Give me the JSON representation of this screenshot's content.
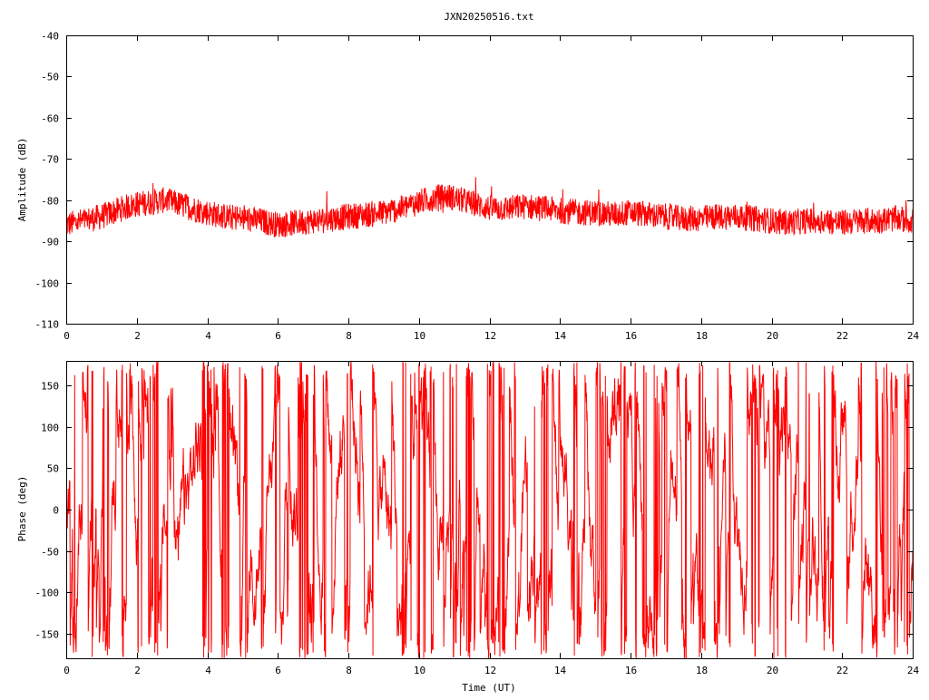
{
  "colors": {
    "series": "#ff0000",
    "axis": "#000000",
    "background": "#ffffff"
  },
  "chart_data": [
    {
      "type": "line",
      "title": "JXN20250516.txt",
      "xlabel": "",
      "ylabel": "Amplitude (dB)",
      "xlim": [
        0,
        24
      ],
      "ylim": [
        -110,
        -40
      ],
      "xticks": [
        "0",
        "2",
        "4",
        "6",
        "8",
        "10",
        "12",
        "14",
        "16",
        "18",
        "20",
        "22",
        "24"
      ],
      "yticks": [
        "-40",
        "-50",
        "-60",
        "-70",
        "-80",
        "-90",
        "-100",
        "-110"
      ],
      "grid": false,
      "series": [
        {
          "color": "#ff0000",
          "x": [
            0,
            0.5,
            1.0,
            1.3,
            1.6,
            2.0,
            2.4,
            2.8,
            3.2,
            3.6,
            4.0,
            4.5,
            5.0,
            5.5,
            6.0,
            6.5,
            7.0,
            7.5,
            8.0,
            8.5,
            9.0,
            9.5,
            10.0,
            10.4,
            10.8,
            11.2,
            11.6,
            12.0,
            12.5,
            13.0,
            13.5,
            14.0,
            14.5,
            15.0,
            15.5,
            16.0,
            16.5,
            17.0,
            17.5,
            18.0,
            18.5,
            19.0,
            19.5,
            20.0,
            20.5,
            21.0,
            21.5,
            22.0,
            22.5,
            23.0,
            23.5,
            24.0
          ],
          "y": [
            -86,
            -85,
            -84,
            -83,
            -82,
            -81,
            -80.5,
            -80,
            -81,
            -82,
            -83,
            -84,
            -84.5,
            -85,
            -86,
            -85.5,
            -85,
            -84.5,
            -84,
            -83.5,
            -83,
            -82,
            -80.5,
            -79.5,
            -79,
            -80,
            -81,
            -82,
            -82,
            -81.5,
            -82,
            -82.5,
            -83,
            -83,
            -83.5,
            -83,
            -83.5,
            -84,
            -84.5,
            -84.5,
            -84,
            -84,
            -84.5,
            -85,
            -85.5,
            -85,
            -85,
            -85.5,
            -85,
            -85,
            -84.5,
            -85
          ]
        }
      ]
    },
    {
      "type": "line",
      "title": "",
      "xlabel": "Time (UT)",
      "ylabel": "Phase (deg)",
      "xlim": [
        0,
        24
      ],
      "ylim": [
        -180,
        180
      ],
      "xticks": [
        "0",
        "2",
        "4",
        "6",
        "8",
        "10",
        "12",
        "14",
        "16",
        "18",
        "20",
        "22",
        "24"
      ],
      "yticks": [
        "150",
        "100",
        "50",
        "0",
        "-50",
        "-100",
        "-150"
      ],
      "grid": false,
      "series": [
        {
          "color": "#ff0000",
          "x": [
            0,
            0.5,
            1.0,
            1.5,
            2.0,
            2.5,
            3.0,
            3.5,
            4.0,
            4.5,
            5.0,
            5.5,
            6.0,
            6.5,
            7.0,
            7.5,
            8.0,
            8.5,
            9.0,
            9.5,
            10.0,
            10.5,
            11.0,
            11.5,
            12.0,
            12.5,
            13.0,
            13.5,
            14.0,
            14.5,
            15.0,
            15.5,
            16.0,
            16.5,
            17.0,
            17.5,
            18.0,
            18.5,
            19.0,
            19.5,
            20.0,
            20.5,
            21.0,
            21.5,
            22.0,
            22.5,
            23.0,
            23.5,
            24.0
          ],
          "y": [
            20,
            120,
            140,
            60,
            -40,
            150,
            -120,
            40,
            120,
            -150,
            60,
            -80,
            130,
            0,
            -100,
            80,
            150,
            -60,
            20,
            -130,
            110,
            -90,
            160,
            40,
            -140,
            -60,
            90,
            -120,
            0,
            60,
            -110,
            120,
            70,
            -160,
            100,
            30,
            -130,
            150,
            -40,
            80,
            -60,
            130,
            0,
            -100,
            90,
            -30,
            -150,
            60,
            40
          ]
        }
      ]
    }
  ]
}
